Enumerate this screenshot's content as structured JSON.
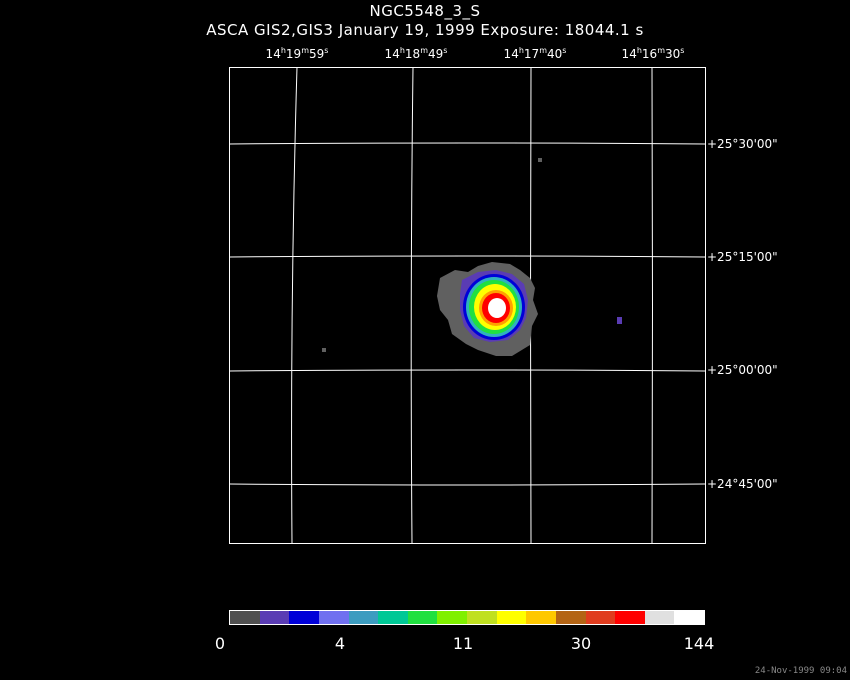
{
  "title": "NGC5548_3_S",
  "subtitle": "ASCA GIS2,GIS3 January 19, 1999 Exposure: 18044.1 s",
  "ra_labels": [
    {
      "h": "14",
      "m": "19",
      "s": "59"
    },
    {
      "h": "14",
      "m": "18",
      "s": "49"
    },
    {
      "h": "14",
      "m": "17",
      "s": "40"
    },
    {
      "h": "14",
      "m": "16",
      "s": "30"
    }
  ],
  "dec_labels": [
    "+25°30'00\"",
    "+25°15'00\"",
    "+25°00'00\"",
    "+24°45'00\""
  ],
  "colorbar": {
    "colors": [
      "#505050",
      "#5a3cb4",
      "#0000d8",
      "#7070f0",
      "#3c9cc0",
      "#00c896",
      "#20e040",
      "#80f000",
      "#c0e020",
      "#ffff00",
      "#ffc800",
      "#b46414",
      "#e03c1e",
      "#ff0000",
      "#e0e0e0",
      "#ffffff"
    ],
    "tick_labels": [
      "0",
      "4",
      "11",
      "30",
      "144"
    ]
  },
  "footer_timestamp": "24-Nov-1999 09:04",
  "source_colors": {
    "background": "#000000",
    "grid": "#ffffff",
    "halo": "#606060",
    "ring_purple": "#5a3cb4",
    "ring_blue": "#0000d8",
    "ring_cyan": "#30b0c0",
    "ring_green": "#20e040",
    "ring_yellow": "#ffff00",
    "ring_orange": "#ffa000",
    "ring_red": "#ff0000",
    "core": "#ffffff"
  }
}
